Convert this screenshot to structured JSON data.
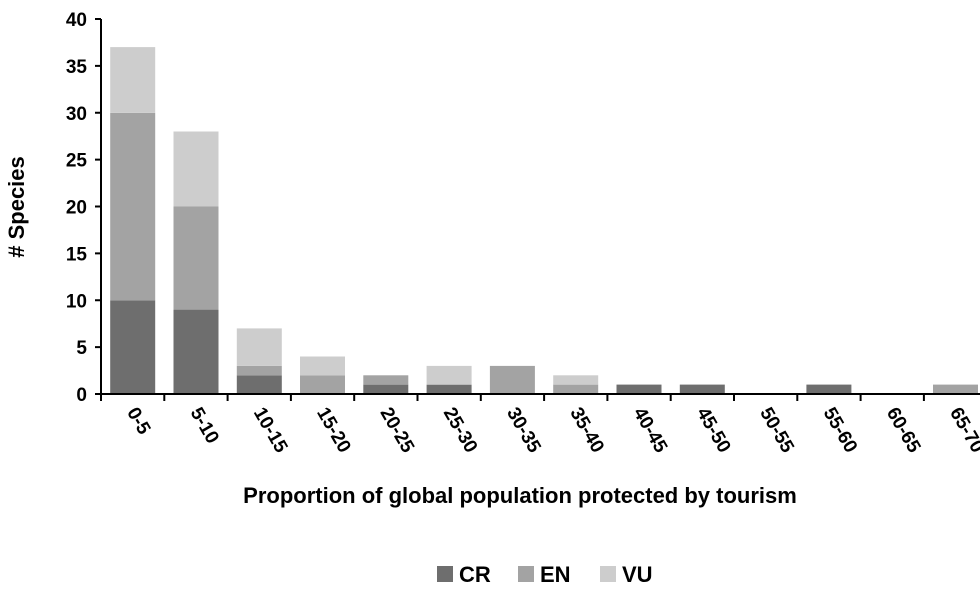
{
  "chart_data": {
    "type": "bar",
    "stacked": true,
    "categories": [
      "0-5",
      "5-10",
      "10-15",
      "15-20",
      "20-25",
      "25-30",
      "30-35",
      "35-40",
      "40-45",
      "45-50",
      "50-55",
      "55-60",
      "60-65",
      "65-70"
    ],
    "series": [
      {
        "name": "CR",
        "color": "#6e6e6e",
        "values": [
          10,
          9,
          2,
          0,
          1,
          1,
          0,
          0,
          1,
          1,
          0,
          1,
          0,
          0
        ]
      },
      {
        "name": "EN",
        "color": "#a3a3a3",
        "values": [
          20,
          11,
          1,
          2,
          1,
          0,
          3,
          1,
          0,
          0,
          0,
          0,
          0,
          1
        ]
      },
      {
        "name": "VU",
        "color": "#cdcdcd",
        "values": [
          7,
          8,
          4,
          2,
          0,
          2,
          0,
          1,
          0,
          0,
          0,
          0,
          0,
          0
        ]
      }
    ],
    "title": "",
    "xlabel": "Proportion of global population protected by tourism",
    "ylabel": "# Species",
    "ylim": [
      0,
      40
    ],
    "yticks": [
      0,
      5,
      10,
      15,
      20,
      25,
      30,
      35,
      40
    ],
    "grid": false,
    "legend_position": "bottom"
  }
}
